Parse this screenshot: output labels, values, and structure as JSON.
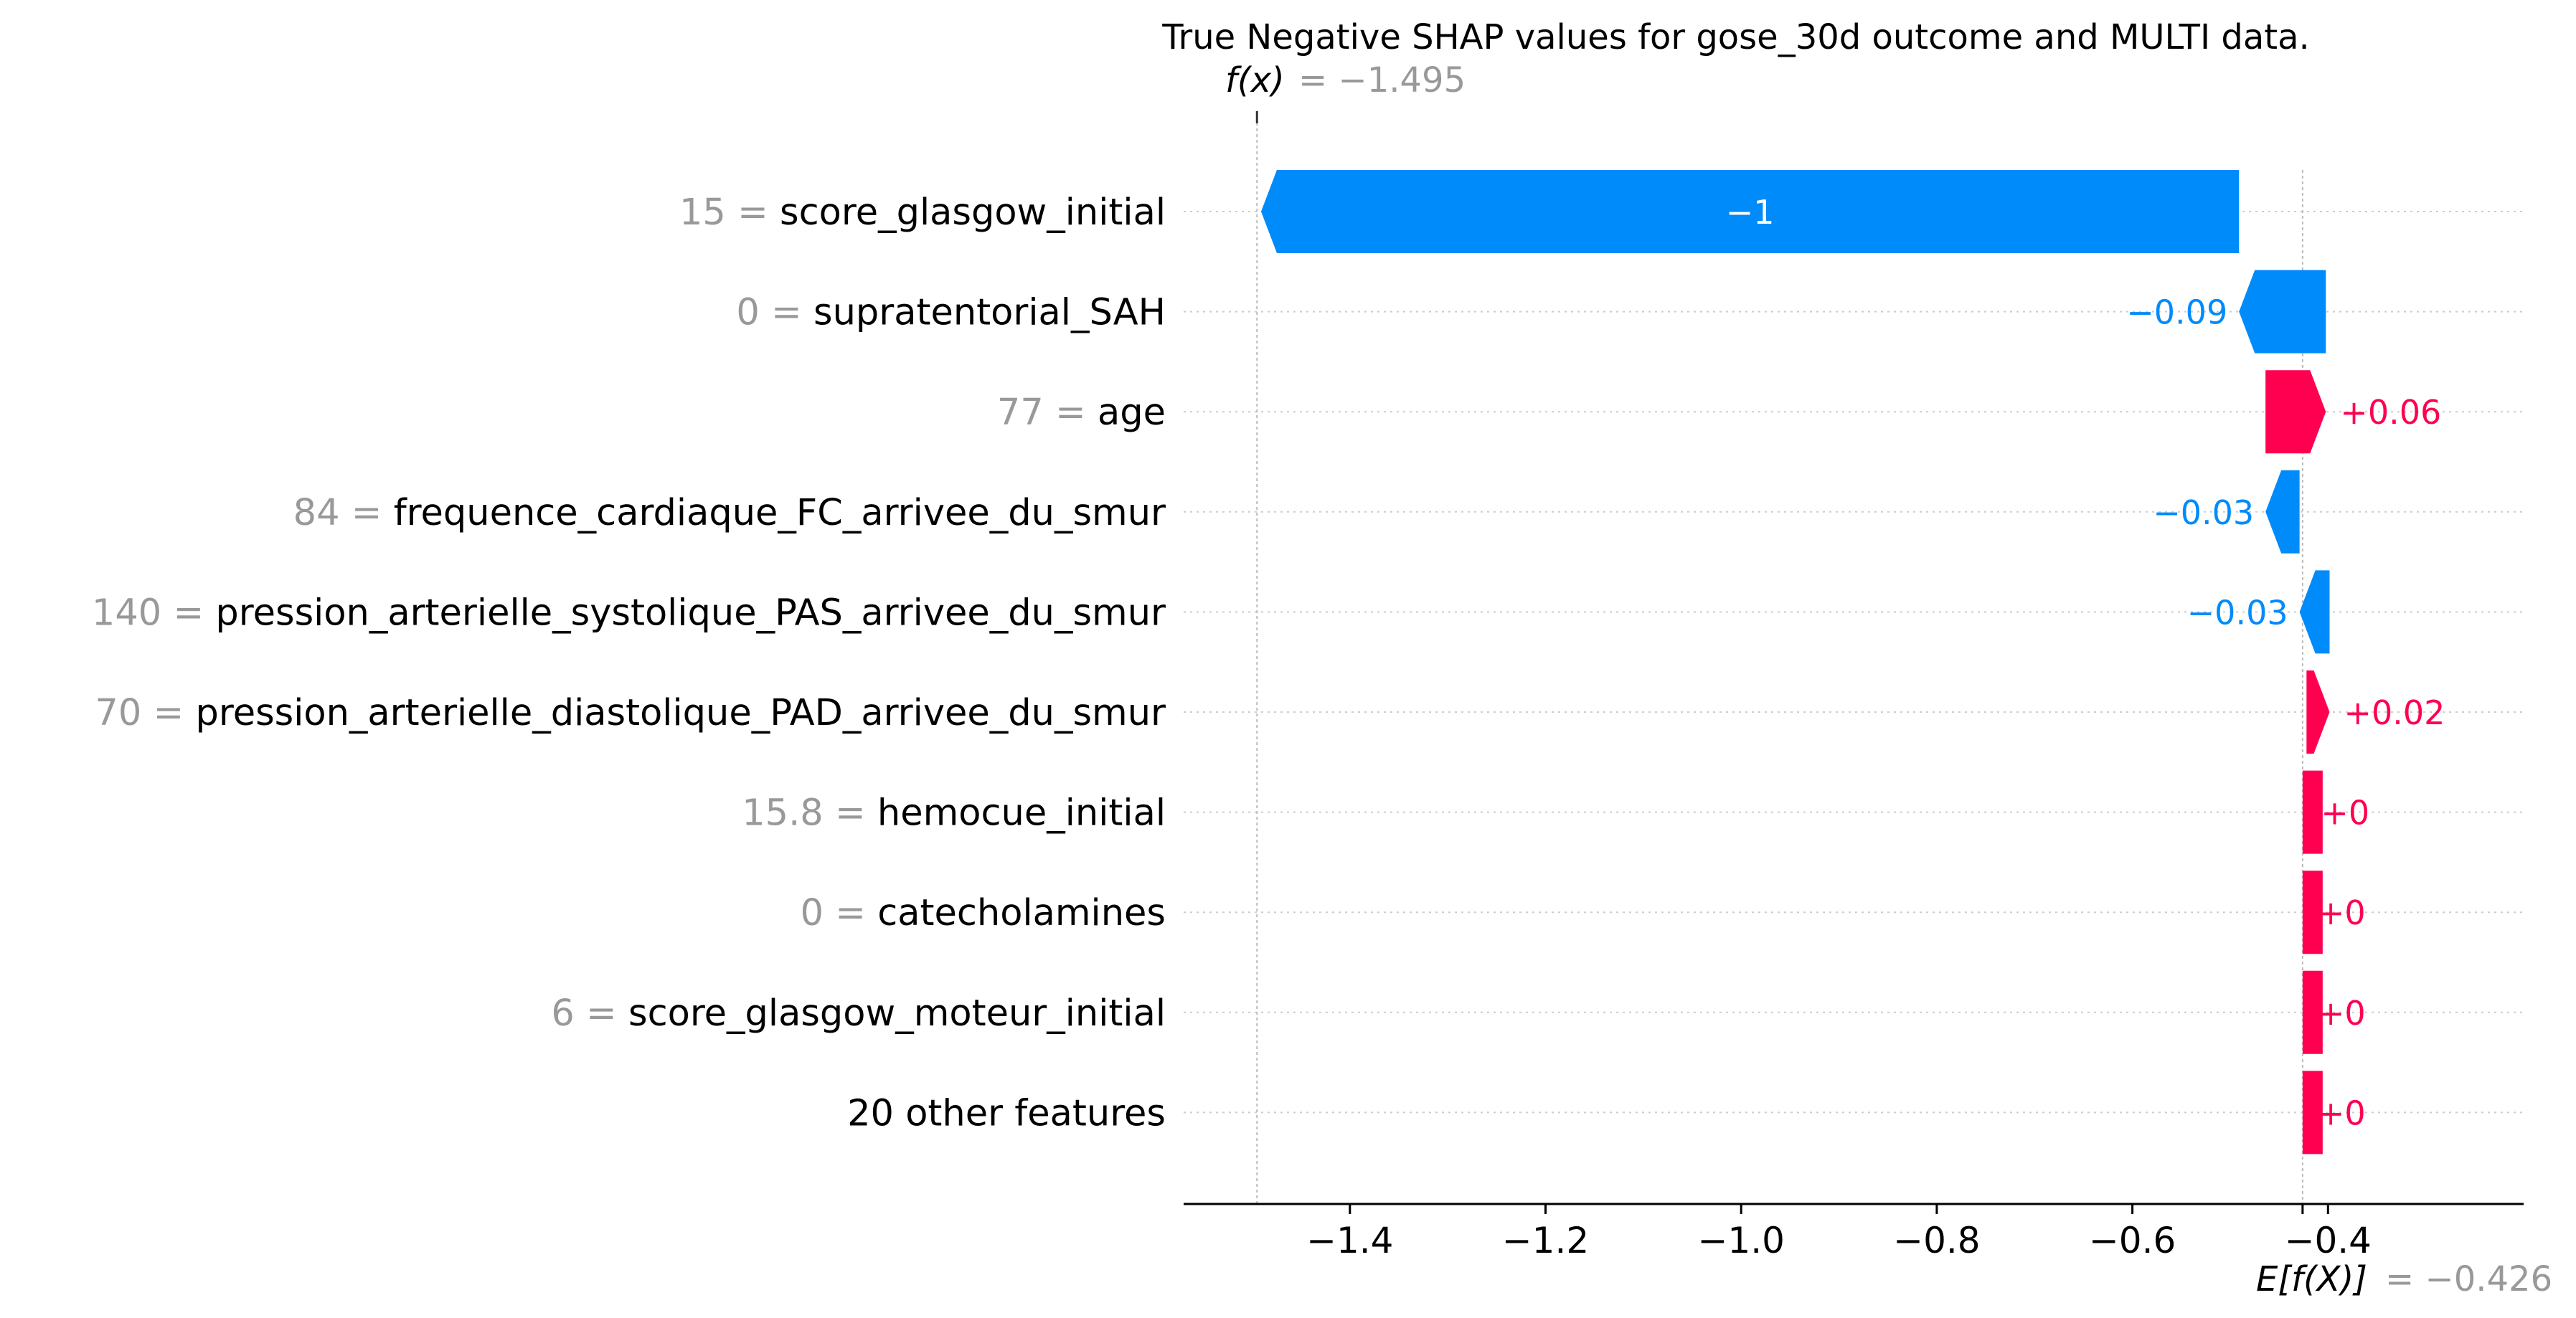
{
  "chart_data": {
    "type": "waterfall",
    "title": "True Negative SHAP values for gose_30d outcome and MULTI data.",
    "fx_label": "f(x)",
    "fx_value": -1.495,
    "fx_value_text": "= −1.495",
    "efx_label": "E[f(X)]",
    "efx_value": -0.426,
    "efx_value_text": "= −0.426",
    "xlim": [
      -1.57,
      -0.2
    ],
    "xticks": [
      -1.4,
      -1.2,
      -1.0,
      -0.8,
      -0.6,
      -0.4
    ],
    "xtick_labels": [
      "−1.4",
      "−1.2",
      "−1.0",
      "−0.8",
      "−0.6",
      "−0.4"
    ],
    "colors": {
      "positive": "#ff0051",
      "negative": "#008bfb",
      "value_gray": "#999999",
      "text": "#000000"
    },
    "features": [
      {
        "value": "15",
        "name": "score_glasgow_initial",
        "shap": -0.9998,
        "label": "−1"
      },
      {
        "value": "0",
        "name": "supratentorial_SAH",
        "shap": -0.0888,
        "label": "−0.09"
      },
      {
        "value": "77",
        "name": "age",
        "shap": 0.0617,
        "label": "+0.06"
      },
      {
        "value": "84",
        "name": "frequence_cardiaque_FC_arrivee_du_smur",
        "shap": -0.0348,
        "label": "−0.03"
      },
      {
        "value": "140",
        "name": "pression_arterielle_systolique_PAS_arrivee_du_smur",
        "shap": -0.0307,
        "label": "−0.03"
      },
      {
        "value": "70",
        "name": "pression_arterielle_diastolique_PAD_arrivee_du_smur",
        "shap": 0.0236,
        "label": "+0.02"
      },
      {
        "value": "15.8",
        "name": "hemocue_initial",
        "shap": 0.004,
        "label": "+0"
      },
      {
        "value": "0",
        "name": "catecholamines",
        "shap": 0.0,
        "label": "+0"
      },
      {
        "value": "6",
        "name": "score_glasgow_moteur_initial",
        "shap": 0.0,
        "label": "+0"
      },
      {
        "value": "",
        "name": "20 other features",
        "shap": 0.0,
        "label": "+0"
      }
    ]
  }
}
